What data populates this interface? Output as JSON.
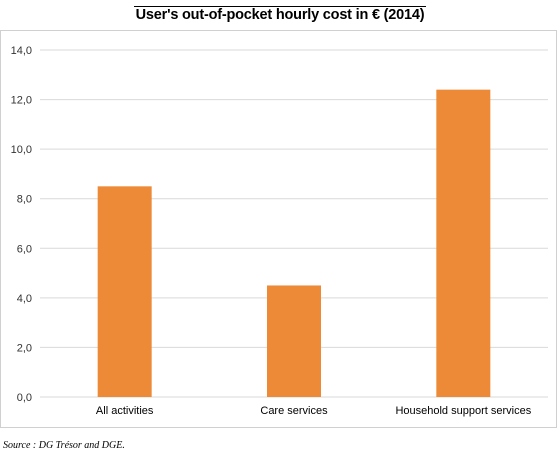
{
  "chart_data": {
    "type": "bar",
    "title": "User's out-of-pocket hourly cost in € (2014)",
    "categories": [
      "All activities",
      "Care services",
      "Household support services"
    ],
    "values": [
      8.5,
      4.5,
      12.4
    ],
    "ylim": [
      0,
      14
    ],
    "yticks": [
      "0,0",
      "2,0",
      "4,0",
      "6,0",
      "8,0",
      "10,0",
      "12,0",
      "14,0"
    ],
    "ytick_values": [
      0,
      2,
      4,
      6,
      8,
      10,
      12,
      14
    ],
    "xlabel": "",
    "ylabel": "",
    "grid": true,
    "bar_color": "#ED8A38",
    "grid_color": "#d9d9d9"
  },
  "footer": {
    "source": "Source : DG Trésor and DGE."
  }
}
